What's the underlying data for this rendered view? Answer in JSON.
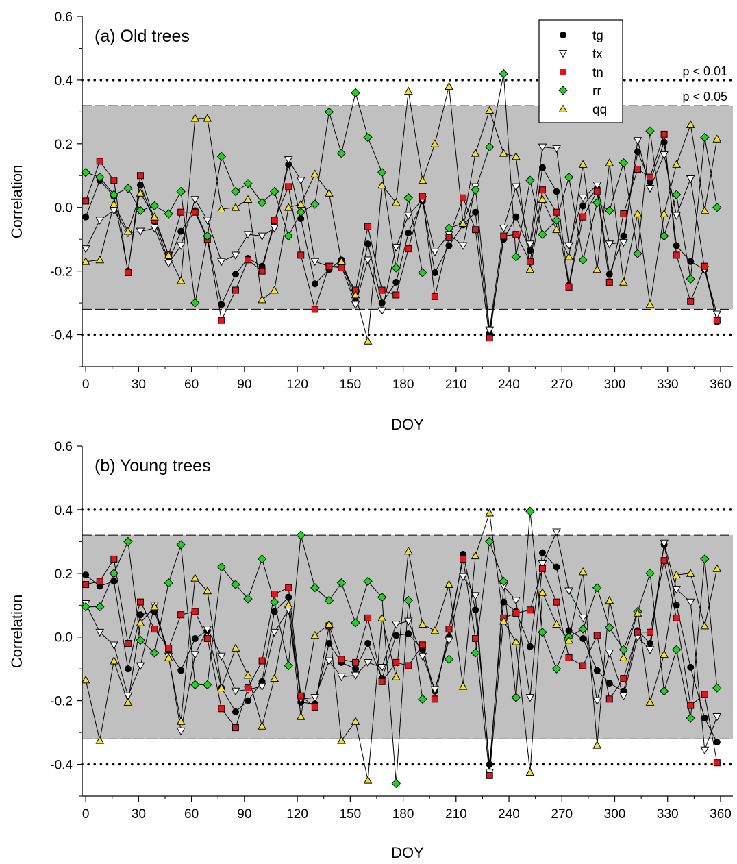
{
  "chart_data": [
    {
      "type": "line",
      "title": "(a) Old trees",
      "xlabel": "DOY",
      "ylabel": "Correlation",
      "xlim": [
        -2,
        367
      ],
      "ylim": [
        -0.5,
        0.6
      ],
      "xticks": [
        "0",
        "30",
        "60",
        "90",
        "120",
        "150",
        "180",
        "210",
        "240",
        "270",
        "300",
        "330",
        "360"
      ],
      "yticks": [
        "-0.4",
        "-0.2",
        "0.0",
        "0.2",
        "0.4",
        "0.6"
      ],
      "significance": [
        {
          "label": "p < 0.05",
          "value": 0.32,
          "style": "dashed",
          "shaded": true
        },
        {
          "label": "p < 0.01",
          "value": 0.4,
          "style": "dotted"
        }
      ],
      "legend_position": "top-right",
      "x": [
        0,
        8,
        16,
        24,
        31,
        39,
        47,
        54,
        62,
        69,
        77,
        85,
        92,
        100,
        107,
        115,
        122,
        130,
        138,
        145,
        153,
        160,
        168,
        176,
        183,
        191,
        198,
        206,
        214,
        221,
        229,
        237,
        244,
        252,
        259,
        267,
        274,
        282,
        290,
        297,
        305,
        313,
        320,
        328,
        335,
        343,
        351,
        358
      ],
      "series": [
        {
          "name": "tg",
          "marker": "circle",
          "color": "#000000",
          "values": [
            -0.03,
            0.085,
            0.035,
            -0.2,
            0.07,
            -0.045,
            -0.17,
            -0.075,
            -0.01,
            -0.095,
            -0.305,
            -0.21,
            -0.16,
            -0.185,
            -0.055,
            0.135,
            -0.035,
            -0.24,
            -0.195,
            -0.165,
            -0.295,
            -0.115,
            -0.3,
            -0.235,
            -0.08,
            0.02,
            -0.205,
            -0.12,
            -0.055,
            -0.015,
            -0.395,
            -0.1,
            -0.03,
            -0.135,
            0.125,
            0.05,
            -0.245,
            0.005,
            0.06,
            -0.21,
            -0.09,
            0.175,
            0.08,
            0.205,
            -0.12,
            -0.17,
            -0.195,
            -0.36
          ]
        },
        {
          "name": "tx",
          "marker": "triangle-down",
          "color": "#ffffff",
          "values": [
            -0.13,
            -0.04,
            -0.01,
            -0.08,
            -0.075,
            -0.065,
            -0.175,
            -0.12,
            0.025,
            -0.04,
            -0.17,
            -0.15,
            -0.085,
            -0.09,
            -0.065,
            0.15,
            0.085,
            -0.17,
            -0.185,
            -0.185,
            -0.305,
            -0.165,
            -0.325,
            -0.125,
            -0.025,
            0.025,
            -0.14,
            -0.085,
            -0.12,
            0.065,
            -0.385,
            -0.065,
            0.065,
            -0.115,
            0.19,
            0.185,
            -0.12,
            0.03,
            0.07,
            -0.115,
            -0.11,
            0.21,
            0.06,
            0.165,
            -0.025,
            0.09,
            -0.195,
            -0.335
          ]
        },
        {
          "name": "tn",
          "marker": "square",
          "color": "#e8141b",
          "values": [
            0.02,
            0.145,
            0.085,
            -0.205,
            0.1,
            -0.04,
            -0.15,
            -0.015,
            -0.015,
            -0.1,
            -0.355,
            -0.26,
            -0.165,
            -0.2,
            -0.04,
            0.065,
            -0.15,
            -0.32,
            -0.185,
            -0.19,
            -0.26,
            -0.06,
            -0.26,
            -0.275,
            -0.13,
            0.035,
            -0.28,
            -0.095,
            0.03,
            -0.07,
            -0.41,
            -0.09,
            -0.085,
            -0.17,
            0.055,
            -0.015,
            -0.25,
            -0.03,
            0.05,
            -0.235,
            -0.02,
            0.12,
            0.095,
            0.23,
            -0.15,
            -0.295,
            -0.185,
            -0.355
          ]
        },
        {
          "name": "rr",
          "marker": "diamond",
          "color": "#1fd41f",
          "values": [
            0.11,
            0.095,
            0.04,
            0.06,
            -0.01,
            0.005,
            -0.02,
            0.05,
            -0.3,
            -0.09,
            0.16,
            0.05,
            0.075,
            0.015,
            0.05,
            -0.09,
            -0.015,
            0.01,
            0.3,
            0.17,
            0.36,
            0.22,
            0.11,
            -0.19,
            0.03,
            -0.205,
            null,
            -0.065,
            -0.05,
            0.055,
            0.19,
            0.42,
            -0.155,
            0.085,
            -0.085,
            -0.04,
            0.095,
            -0.165,
            0.015,
            -0.01,
            0.14,
            -0.145,
            0.24,
            -0.09,
            0.04,
            -0.225,
            0.22,
            0.0
          ]
        },
        {
          "name": "qq",
          "marker": "triangle-up",
          "color": "#f5e21c",
          "values": [
            -0.17,
            -0.165,
            0.01,
            -0.075,
            0.045,
            -0.03,
            -0.15,
            -0.23,
            0.28,
            0.28,
            -0.005,
            0.0,
            0.025,
            -0.29,
            -0.26,
            0.0,
            0.01,
            0.105,
            0.045,
            -0.17,
            -0.275,
            -0.42,
            0.07,
            0.015,
            0.365,
            0.085,
            0.2,
            0.38,
            -0.05,
            0.17,
            0.305,
            0.17,
            0.16,
            -0.195,
            0.025,
            -0.07,
            -0.155,
            0.135,
            -0.195,
            0.14,
            -0.235,
            -0.02,
            -0.305,
            -0.02,
            0.135,
            0.26,
            -0.01,
            0.215
          ]
        }
      ]
    },
    {
      "type": "line",
      "title": "(b) Young trees",
      "xlabel": "DOY",
      "ylabel": "Correlation",
      "xlim": [
        -2,
        367
      ],
      "ylim": [
        -0.5,
        0.6
      ],
      "xticks": [
        "0",
        "30",
        "60",
        "90",
        "120",
        "150",
        "180",
        "210",
        "240",
        "270",
        "300",
        "330",
        "360"
      ],
      "yticks": [
        "-0.4",
        "-0.2",
        "0.0",
        "0.2",
        "0.4",
        "0.6"
      ],
      "significance": [
        {
          "label": "",
          "value": 0.32,
          "style": "dashed",
          "shaded": true
        },
        {
          "label": "",
          "value": 0.4,
          "style": "dotted"
        }
      ],
      "x": [
        0,
        8,
        16,
        24,
        31,
        39,
        47,
        54,
        62,
        69,
        77,
        85,
        92,
        100,
        107,
        115,
        122,
        130,
        138,
        145,
        153,
        160,
        168,
        176,
        183,
        191,
        198,
        206,
        214,
        221,
        229,
        237,
        244,
        252,
        259,
        267,
        274,
        282,
        290,
        297,
        305,
        313,
        320,
        328,
        335,
        343,
        351,
        358
      ],
      "series": [
        {
          "name": "tg",
          "marker": "circle",
          "color": "#000000",
          "values": [
            0.195,
            0.16,
            0.175,
            -0.1,
            0.07,
            0.08,
            -0.045,
            -0.105,
            -0.005,
            0.02,
            -0.16,
            -0.235,
            -0.2,
            -0.14,
            0.08,
            0.125,
            -0.205,
            -0.21,
            -0.02,
            -0.08,
            -0.1,
            -0.02,
            -0.13,
            0.005,
            0.01,
            -0.04,
            -0.17,
            0.0,
            0.26,
            0.085,
            -0.4,
            0.11,
            0.08,
            -0.03,
            0.265,
            0.22,
            0.02,
            -0.005,
            -0.105,
            -0.145,
            -0.17,
            0.02,
            -0.02,
            0.29,
            0.1,
            -0.095,
            -0.255,
            -0.33
          ]
        },
        {
          "name": "tx",
          "marker": "triangle-down",
          "color": "#ffffff",
          "values": [
            0.105,
            0.015,
            -0.025,
            -0.185,
            -0.09,
            0.1,
            -0.06,
            -0.295,
            -0.055,
            0.025,
            -0.06,
            -0.17,
            -0.165,
            -0.155,
            0.015,
            0.085,
            -0.195,
            -0.19,
            -0.075,
            -0.125,
            -0.12,
            -0.08,
            -0.095,
            0.04,
            0.05,
            -0.06,
            -0.165,
            -0.01,
            0.19,
            0.13,
            -0.425,
            0.16,
            0.115,
            -0.19,
            0.23,
            0.33,
            0.145,
            0.06,
            -0.2,
            -0.05,
            -0.185,
            0.0,
            -0.04,
            0.295,
            0.15,
            0.11,
            -0.355,
            -0.25
          ]
        },
        {
          "name": "tn",
          "marker": "square",
          "color": "#e8141b",
          "values": [
            0.165,
            0.175,
            0.245,
            -0.02,
            0.11,
            0.025,
            -0.035,
            0.07,
            0.08,
            -0.005,
            -0.225,
            -0.285,
            -0.16,
            -0.075,
            0.135,
            0.155,
            -0.185,
            -0.22,
            0.035,
            -0.07,
            -0.08,
            0.06,
            -0.14,
            -0.08,
            -0.09,
            -0.025,
            -0.195,
            0.025,
            0.245,
            -0.005,
            -0.435,
            0.06,
            0.075,
            0.085,
            0.215,
            0.11,
            -0.065,
            -0.09,
            0.005,
            -0.195,
            -0.13,
            0.015,
            0.015,
            0.24,
            0.06,
            -0.215,
            -0.18,
            -0.395
          ]
        },
        {
          "name": "rr",
          "marker": "diamond",
          "color": "#1fd41f",
          "values": [
            0.095,
            0.095,
            0.2,
            0.3,
            -0.01,
            -0.05,
            0.17,
            0.29,
            -0.15,
            -0.15,
            0.22,
            0.165,
            0.12,
            0.245,
            0.11,
            -0.09,
            0.32,
            0.155,
            0.115,
            0.17,
            0.045,
            0.175,
            0.125,
            -0.46,
            0.115,
            -0.195,
            null,
            -0.07,
            null,
            -0.05,
            0.3,
            0.175,
            -0.19,
            0.395,
            0.015,
            -0.1,
            0.0,
            0.025,
            0.155,
            0.03,
            -0.04,
            0.08,
            0.2,
            -0.17,
            -0.04,
            -0.255,
            0.245,
            -0.16
          ]
        },
        {
          "name": "qq",
          "marker": "triangle-up",
          "color": "#f5e21c",
          "values": [
            -0.135,
            -0.325,
            -0.075,
            -0.205,
            0.045,
            0.095,
            -0.065,
            -0.265,
            0.185,
            0.145,
            -0.16,
            -0.035,
            -0.12,
            -0.28,
            -0.13,
            0.1,
            -0.25,
            0.005,
            0.04,
            -0.325,
            -0.265,
            -0.45,
            0.06,
            -0.125,
            0.27,
            0.04,
            0.02,
            0.165,
            -0.155,
            0.255,
            0.39,
            0.05,
            -0.015,
            -0.425,
            0.14,
            0.04,
            -0.01,
            0.205,
            -0.34,
            0.115,
            -0.065,
            0.075,
            -0.205,
            -0.055,
            0.195,
            0.2,
            0.035,
            0.215
          ]
        }
      ]
    }
  ]
}
